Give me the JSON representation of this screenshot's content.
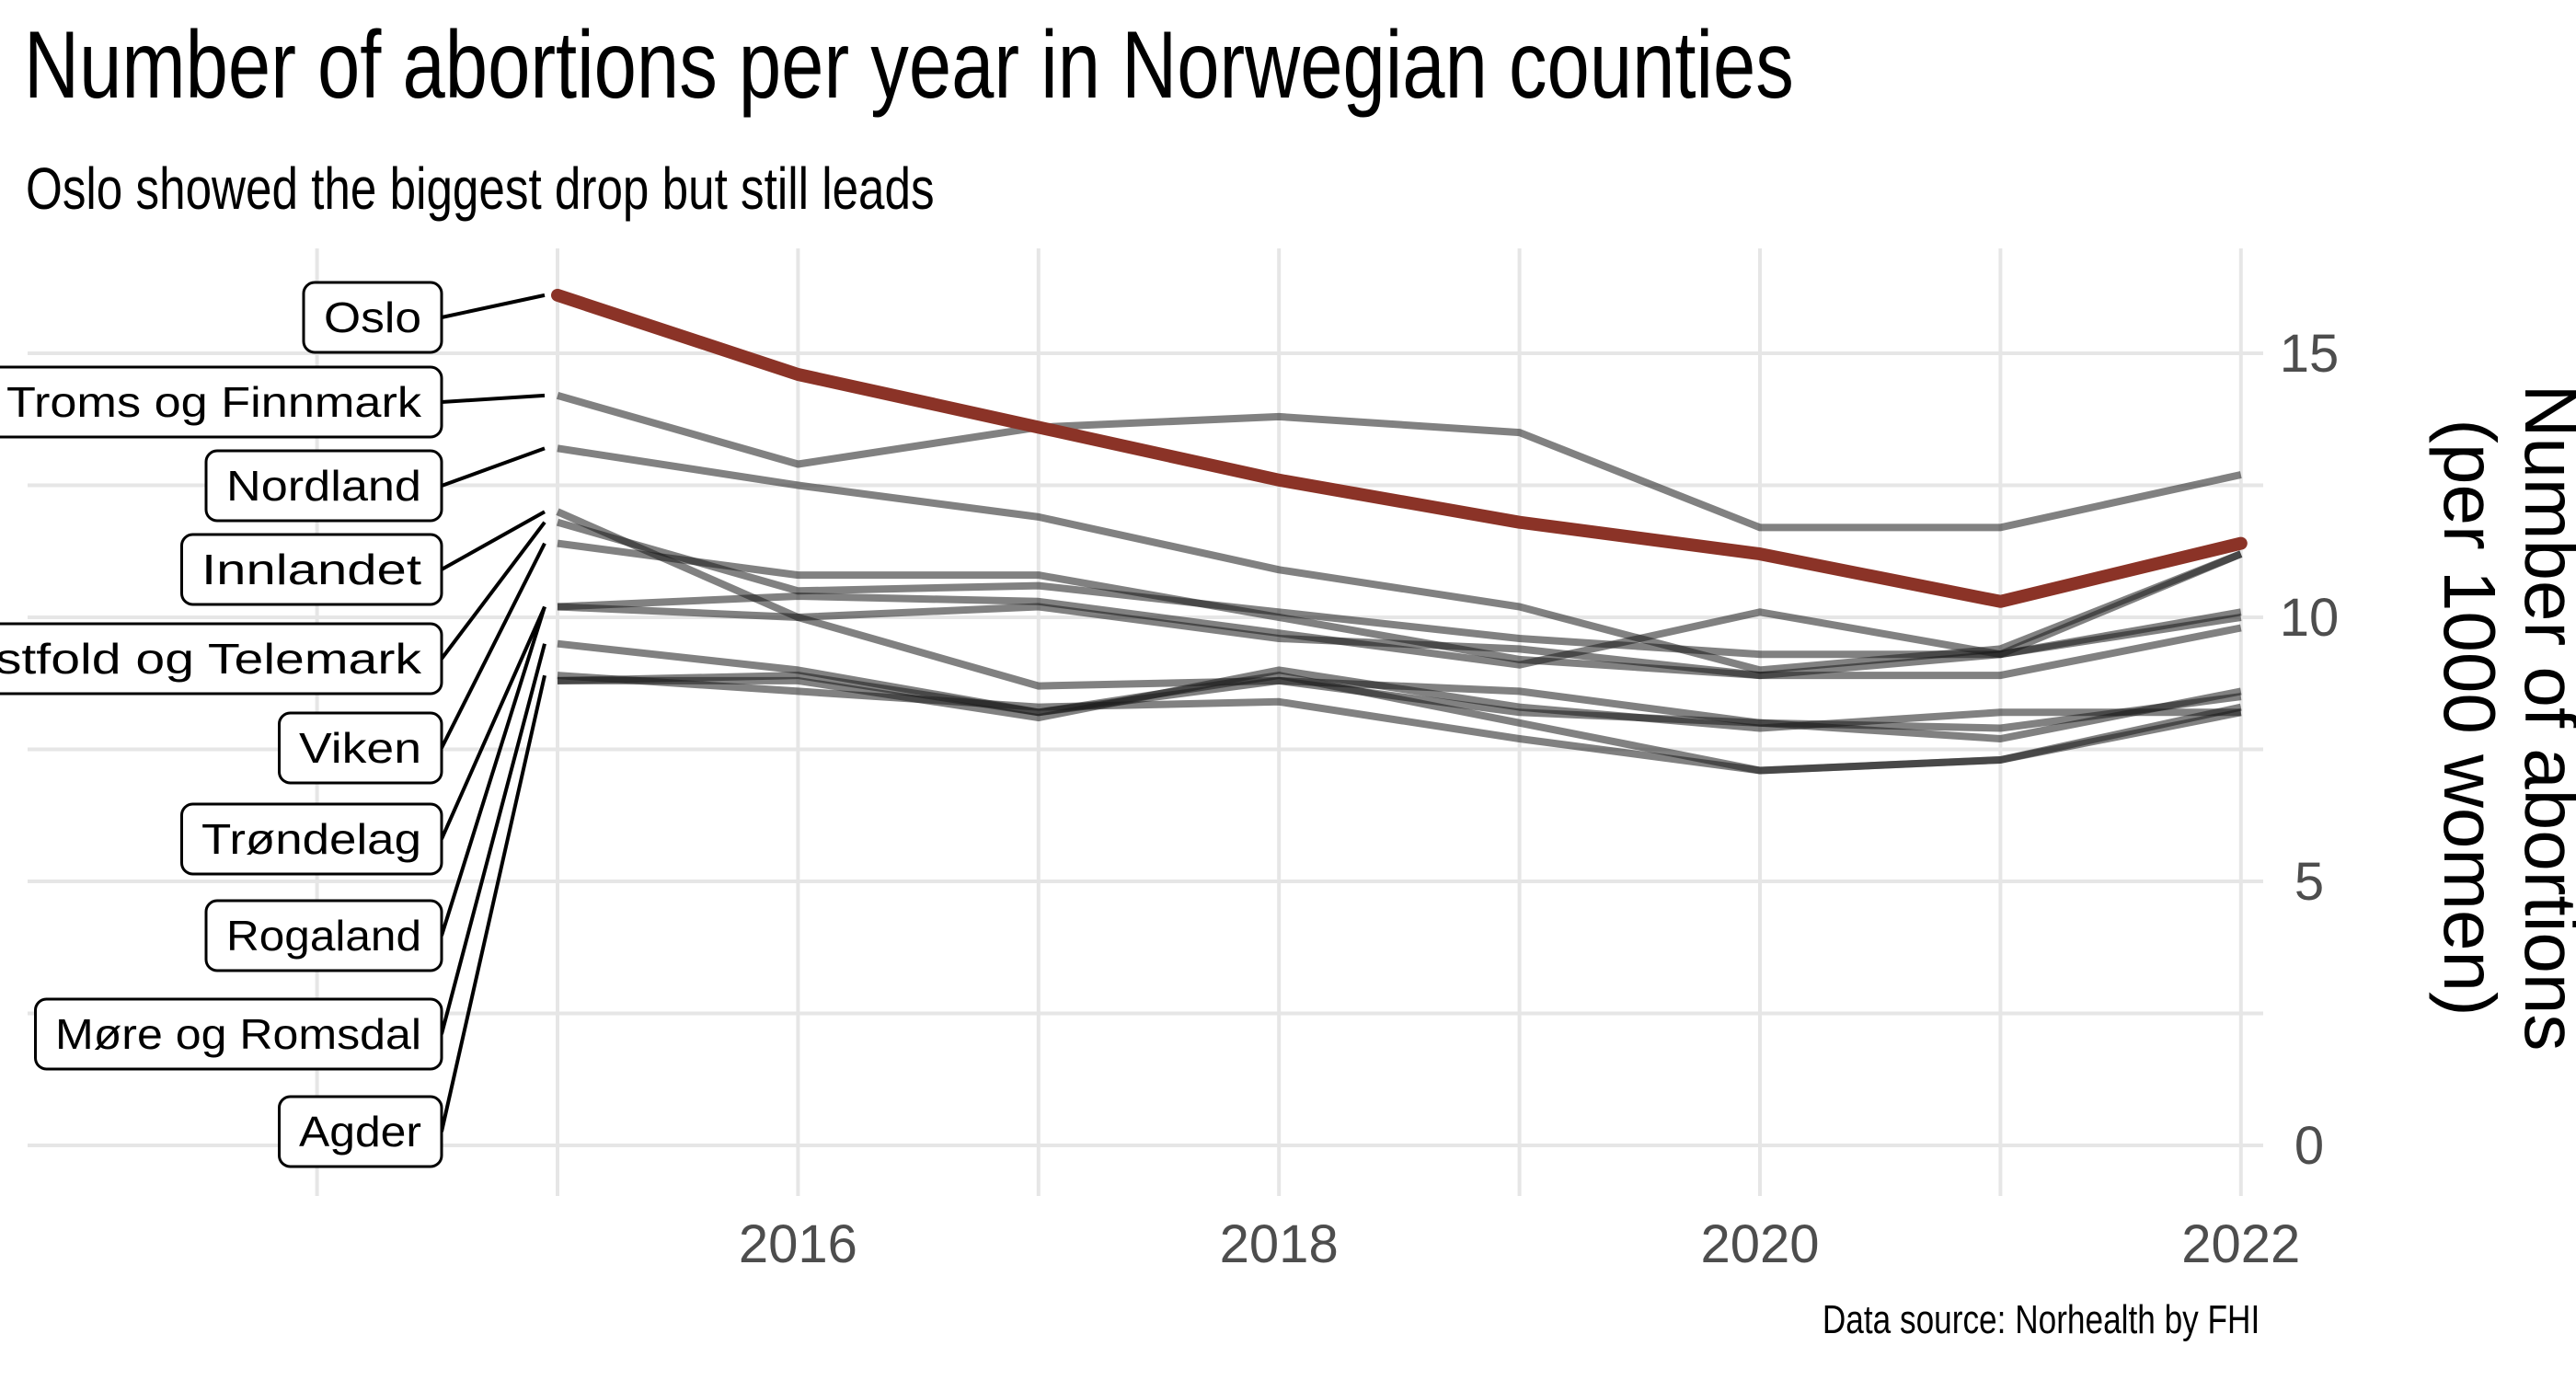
{
  "title": "Number of abortions per year in Norwegian counties",
  "subtitle": "Oslo showed the biggest drop but still leads",
  "caption": "Data source: Norhealth by FHI",
  "colors": {
    "highlight": "#8b3327",
    "other": "#7a7a7a",
    "grid": "#e6e6e6",
    "tick": "#4d4d4d"
  },
  "chart_data": {
    "type": "line",
    "title": "Number of abortions per year in Norwegian counties",
    "subtitle": "Oslo showed the biggest drop but still leads",
    "xlabel": "",
    "ylabel": "Number of abortions\n(per 1000 women)",
    "ylabel_lines": [
      "Number of abortions",
      "(per 1000 women)"
    ],
    "x": [
      2015,
      2016,
      2017,
      2018,
      2019,
      2020,
      2021,
      2022
    ],
    "x_ticks": [
      2016,
      2018,
      2020,
      2022
    ],
    "y_ticks": [
      0,
      5,
      10,
      15
    ],
    "ylim": [
      0,
      16.6
    ],
    "y_axis_position": "right",
    "grid": true,
    "highlight_series": "Oslo",
    "series": [
      {
        "name": "Oslo",
        "values": [
          16.1,
          14.6,
          13.6,
          12.6,
          11.8,
          11.2,
          10.3,
          11.4
        ]
      },
      {
        "name": "Troms og Finnmark",
        "values": [
          14.2,
          12.9,
          13.6,
          13.8,
          13.5,
          11.7,
          11.7,
          12.7
        ]
      },
      {
        "name": "Nordland",
        "values": [
          13.2,
          12.5,
          11.9,
          10.9,
          10.2,
          9.0,
          9.4,
          11.2
        ]
      },
      {
        "name": "Innlandet",
        "values": [
          12.0,
          10.0,
          8.7,
          8.8,
          8.6,
          8.0,
          7.9,
          8.5
        ]
      },
      {
        "name": "Vestfold og Telemark",
        "values": [
          11.8,
          10.5,
          10.6,
          10.1,
          9.6,
          9.3,
          9.3,
          10.1
        ]
      },
      {
        "name": "Viken",
        "values": [
          11.4,
          10.8,
          10.8,
          10.0,
          9.2,
          8.9,
          8.9,
          9.8
        ]
      },
      {
        "name": "Trøndelag",
        "values": [
          10.2,
          10.4,
          10.3,
          9.7,
          9.1,
          10.1,
          9.3,
          11.2
        ]
      },
      {
        "name": "Rogaland",
        "values": [
          10.2,
          10.0,
          10.2,
          9.6,
          9.4,
          8.9,
          9.3,
          10.0
        ]
      },
      {
        "name": "Møre og Romsdal",
        "values": [
          9.5,
          9.0,
          8.2,
          8.9,
          8.0,
          7.1,
          7.3,
          8.3
        ]
      },
      {
        "name": "Agder",
        "values": [
          8.9,
          8.6,
          8.3,
          8.4,
          7.7,
          7.1,
          7.3,
          8.2
        ]
      }
    ],
    "extra_lines": [
      {
        "values": [
          8.8,
          8.8,
          8.1,
          9.0,
          8.3,
          7.9,
          8.2,
          8.2
        ]
      },
      {
        "values": [
          8.8,
          8.9,
          8.2,
          8.8,
          8.2,
          8.0,
          7.7,
          8.6
        ]
      }
    ]
  }
}
